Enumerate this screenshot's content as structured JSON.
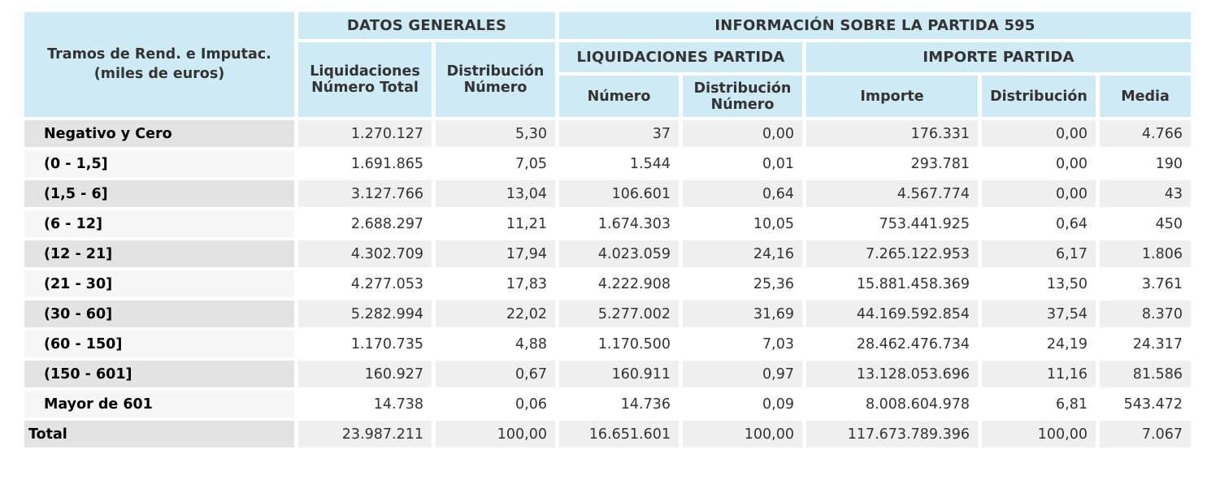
{
  "chart_data": {
    "type": "table",
    "corner_header": "Tramos de Rend. e Imputac.\n(miles de euros)",
    "group_headers": {
      "datos_generales": "DATOS GENERALES",
      "informacion_partida": "INFORMACIÓN SOBRE LA PARTIDA 595",
      "liquidaciones_partida": "LIQUIDACIONES PARTIDA",
      "importe_partida": "IMPORTE PARTIDA"
    },
    "column_headers": {
      "liquidaciones_numero_total": "Liquidaciones\nNúmero Total",
      "distribucion_numero_general": "Distribución\nNúmero",
      "numero": "Número",
      "distribucion_numero_partida": "Distribución\nNúmero",
      "importe": "Importe",
      "distribucion": "Distribución",
      "media": "Media"
    },
    "rows": [
      {
        "label": "Negativo y Cero",
        "values": [
          "1.270.127",
          "5,30",
          "37",
          "0,00",
          "176.331",
          "0,00",
          "4.766"
        ]
      },
      {
        "label": "(0 - 1,5]",
        "values": [
          "1.691.865",
          "7,05",
          "1.544",
          "0,01",
          "293.781",
          "0,00",
          "190"
        ]
      },
      {
        "label": "(1,5 - 6]",
        "values": [
          "3.127.766",
          "13,04",
          "106.601",
          "0,64",
          "4.567.774",
          "0,00",
          "43"
        ]
      },
      {
        "label": "(6 - 12]",
        "values": [
          "2.688.297",
          "11,21",
          "1.674.303",
          "10,05",
          "753.441.925",
          "0,64",
          "450"
        ]
      },
      {
        "label": "(12 - 21]",
        "values": [
          "4.302.709",
          "17,94",
          "4.023.059",
          "24,16",
          "7.265.122.953",
          "6,17",
          "1.806"
        ]
      },
      {
        "label": "(21 - 30]",
        "values": [
          "4.277.053",
          "17,83",
          "4.222.908",
          "25,36",
          "15.881.458.369",
          "13,50",
          "3.761"
        ]
      },
      {
        "label": "(30 - 60]",
        "values": [
          "5.282.994",
          "22,02",
          "5.277.002",
          "31,69",
          "44.169.592.854",
          "37,54",
          "8.370"
        ]
      },
      {
        "label": "(60 - 150]",
        "values": [
          "1.170.735",
          "4,88",
          "1.170.500",
          "7,03",
          "28.462.476.734",
          "24,19",
          "24.317"
        ]
      },
      {
        "label": "(150 - 601]",
        "values": [
          "160.927",
          "0,67",
          "160.911",
          "0,97",
          "13.128.053.696",
          "11,16",
          "81.586"
        ]
      },
      {
        "label": "Mayor de 601",
        "values": [
          "14.738",
          "0,06",
          "14.736",
          "0,09",
          "8.008.604.978",
          "6,81",
          "543.472"
        ]
      },
      {
        "label": "Total",
        "values": [
          "23.987.211",
          "100,00",
          "16.651.601",
          "100,00",
          "117.673.789.396",
          "100,00",
          "7.067"
        ],
        "is_total": true
      }
    ]
  },
  "colors": {
    "header_bg": "#cdeaf5",
    "shaded_label_bg": "#e3e3e3",
    "shaded_data_bg": "#efefef",
    "light_label_bg": "#f6f6f6",
    "light_data_bg": "#ffffff",
    "header_text": "#333333",
    "data_text": "#333333",
    "label_text": "#000000"
  }
}
